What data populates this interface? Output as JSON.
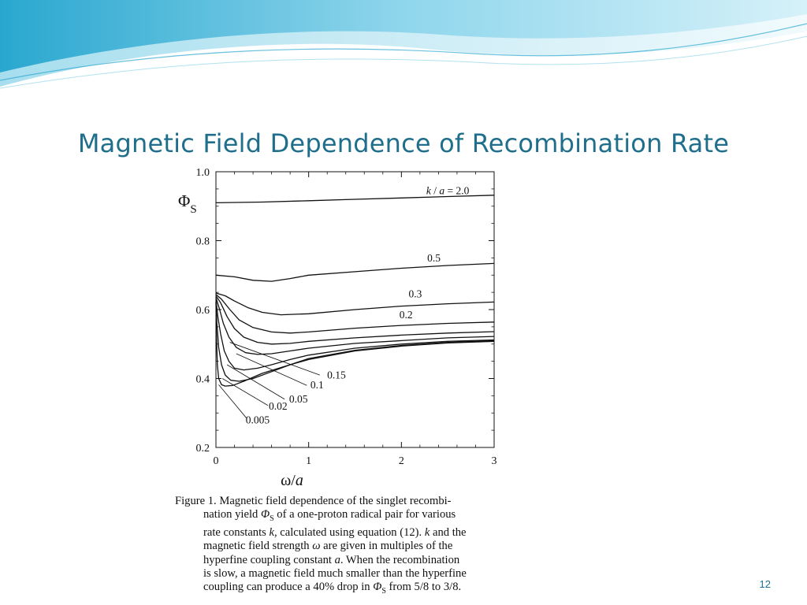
{
  "slide": {
    "title": "Magnetic Field Dependence of Recombination Rate",
    "page_number": "12",
    "accent_color": "#1f6e8c",
    "banner_colors": [
      "#2aa7cf",
      "#8fd6ec",
      "#d6f1f9"
    ]
  },
  "chart_data": {
    "type": "line",
    "title": "",
    "xlabel": "ω/a",
    "ylabel": "Φ_S",
    "xlim": [
      0,
      3
    ],
    "ylim": [
      0.2,
      1.0
    ],
    "x_ticks": [
      "0",
      "1",
      "2",
      "3"
    ],
    "y_ticks": [
      "0.2",
      "0.4",
      "0.6",
      "0.8",
      "1.0"
    ],
    "grid": false,
    "series": [
      {
        "name": "k / a = 2.0",
        "label_pos": [
          2.5,
          0.935
        ],
        "points": [
          [
            0,
            0.91
          ],
          [
            0.5,
            0.912
          ],
          [
            1,
            0.916
          ],
          [
            1.5,
            0.92
          ],
          [
            2,
            0.924
          ],
          [
            2.5,
            0.928
          ],
          [
            3,
            0.932
          ]
        ]
      },
      {
        "name": "0.5",
        "label_pos": [
          2.35,
          0.74
        ],
        "points": [
          [
            0,
            0.7
          ],
          [
            0.2,
            0.695
          ],
          [
            0.4,
            0.685
          ],
          [
            0.6,
            0.682
          ],
          [
            0.8,
            0.69
          ],
          [
            1,
            0.7
          ],
          [
            1.5,
            0.71
          ],
          [
            2,
            0.72
          ],
          [
            2.5,
            0.728
          ],
          [
            3,
            0.734
          ]
        ]
      },
      {
        "name": "0.3",
        "label_pos": [
          2.15,
          0.635
        ],
        "points": [
          [
            0,
            0.648
          ],
          [
            0.1,
            0.64
          ],
          [
            0.2,
            0.625
          ],
          [
            0.35,
            0.605
          ],
          [
            0.5,
            0.592
          ],
          [
            0.7,
            0.585
          ],
          [
            1,
            0.588
          ],
          [
            1.5,
            0.6
          ],
          [
            2,
            0.61
          ],
          [
            2.5,
            0.617
          ],
          [
            3,
            0.622
          ]
        ]
      },
      {
        "name": "0.2",
        "label_pos": [
          2.05,
          0.575
        ],
        "points": [
          [
            0,
            0.644
          ],
          [
            0.06,
            0.63
          ],
          [
            0.15,
            0.6
          ],
          [
            0.25,
            0.57
          ],
          [
            0.4,
            0.548
          ],
          [
            0.6,
            0.535
          ],
          [
            0.8,
            0.532
          ],
          [
            1,
            0.535
          ],
          [
            1.5,
            0.546
          ],
          [
            2,
            0.554
          ],
          [
            2.5,
            0.56
          ],
          [
            3,
            0.564
          ]
        ]
      },
      {
        "name": "0.15",
        "label_pos": [
          1.3,
          0.4
        ],
        "points": [
          [
            0,
            0.64
          ],
          [
            0.05,
            0.62
          ],
          [
            0.12,
            0.58
          ],
          [
            0.2,
            0.545
          ],
          [
            0.3,
            0.52
          ],
          [
            0.45,
            0.505
          ],
          [
            0.6,
            0.5
          ],
          [
            0.8,
            0.502
          ],
          [
            1,
            0.508
          ],
          [
            1.5,
            0.518
          ],
          [
            2,
            0.526
          ],
          [
            2.5,
            0.532
          ],
          [
            3,
            0.536
          ]
        ]
      },
      {
        "name": "0.1",
        "label_pos": [
          1.09,
          0.372
        ],
        "points": [
          [
            0,
            0.635
          ],
          [
            0.04,
            0.6
          ],
          [
            0.08,
            0.56
          ],
          [
            0.14,
            0.52
          ],
          [
            0.22,
            0.49
          ],
          [
            0.32,
            0.475
          ],
          [
            0.45,
            0.47
          ],
          [
            0.6,
            0.472
          ],
          [
            0.8,
            0.48
          ],
          [
            1,
            0.488
          ],
          [
            1.5,
            0.502
          ],
          [
            2,
            0.51
          ],
          [
            2.5,
            0.518
          ],
          [
            3,
            0.522
          ]
        ]
      },
      {
        "name": "0.05",
        "label_pos": [
          0.89,
          0.33
        ],
        "points": [
          [
            0,
            0.63
          ],
          [
            0.02,
            0.58
          ],
          [
            0.05,
            0.53
          ],
          [
            0.09,
            0.48
          ],
          [
            0.14,
            0.45
          ],
          [
            0.2,
            0.43
          ],
          [
            0.3,
            0.425
          ],
          [
            0.45,
            0.43
          ],
          [
            0.6,
            0.44
          ],
          [
            0.8,
            0.455
          ],
          [
            1,
            0.468
          ],
          [
            1.5,
            0.488
          ],
          [
            2,
            0.5
          ],
          [
            2.5,
            0.508
          ],
          [
            3,
            0.512
          ]
        ]
      },
      {
        "name": "0.02",
        "label_pos": [
          0.67,
          0.31
        ],
        "points": [
          [
            0,
            0.625
          ],
          [
            0.01,
            0.56
          ],
          [
            0.03,
            0.49
          ],
          [
            0.06,
            0.44
          ],
          [
            0.1,
            0.41
          ],
          [
            0.16,
            0.395
          ],
          [
            0.25,
            0.392
          ],
          [
            0.4,
            0.4
          ],
          [
            0.6,
            0.42
          ],
          [
            0.8,
            0.44
          ],
          [
            1,
            0.458
          ],
          [
            1.5,
            0.482
          ],
          [
            2,
            0.496
          ],
          [
            2.5,
            0.505
          ],
          [
            3,
            0.51
          ]
        ]
      },
      {
        "name": "0.005",
        "label_pos": [
          0.45,
          0.27
        ],
        "points": [
          [
            0,
            0.62
          ],
          [
            0.005,
            0.53
          ],
          [
            0.015,
            0.44
          ],
          [
            0.03,
            0.4
          ],
          [
            0.06,
            0.382
          ],
          [
            0.1,
            0.378
          ],
          [
            0.18,
            0.38
          ],
          [
            0.3,
            0.392
          ],
          [
            0.5,
            0.415
          ],
          [
            0.8,
            0.44
          ],
          [
            1,
            0.455
          ],
          [
            1.5,
            0.48
          ],
          [
            2,
            0.494
          ],
          [
            2.5,
            0.503
          ],
          [
            3,
            0.508
          ]
        ]
      }
    ]
  },
  "caption": {
    "lines": [
      "Figure 1.   Magnetic field dependence of the singlet recombi-",
      "nation yield Φ_S of a one-proton radical pair for various",
      "rate constants k, calculated using equation (12). k and the",
      "magnetic field strength ω are given in multiples of the",
      "hyperfine coupling constant a. When the recombination",
      "is slow, a magnetic field much smaller than the hyperfine",
      "coupling can produce a 40% drop in Φ_S from 5/8 to 3/8."
    ]
  }
}
